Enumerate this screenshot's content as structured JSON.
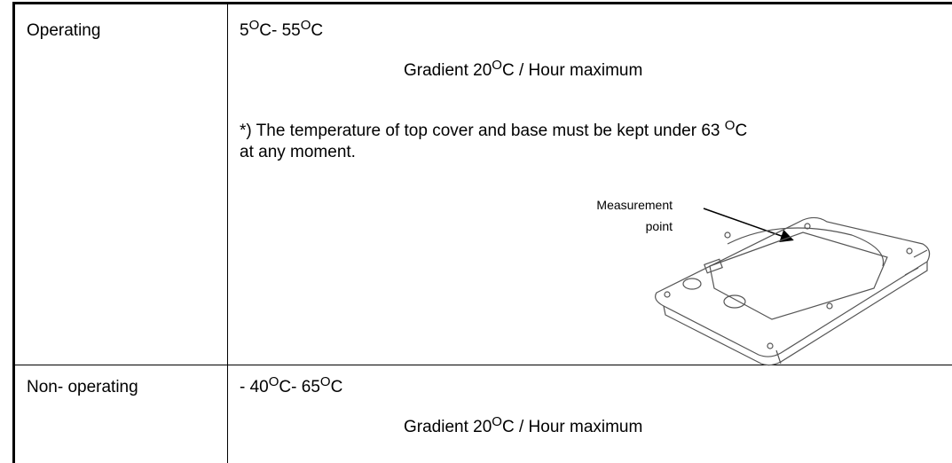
{
  "rows": [
    {
      "label": "Operating",
      "range": [
        "5",
        "O",
        "C- 55",
        "O",
        "C"
      ],
      "gradient": [
        "Gradient 20",
        "O",
        "C / Hour maximum"
      ],
      "note": [
        "*) The temperature of top cover and base must be kept under 63 ",
        "O",
        "C"
      ],
      "note_line2": "at any moment.",
      "figure_label": [
        "Measurement",
        "point"
      ]
    },
    {
      "label": "Non- operating",
      "range": [
        "- 40",
        "O",
        "C- 65",
        "O",
        "C"
      ],
      "gradient": [
        "Gradient 20",
        "O",
        "C / Hour maximum"
      ]
    }
  ]
}
